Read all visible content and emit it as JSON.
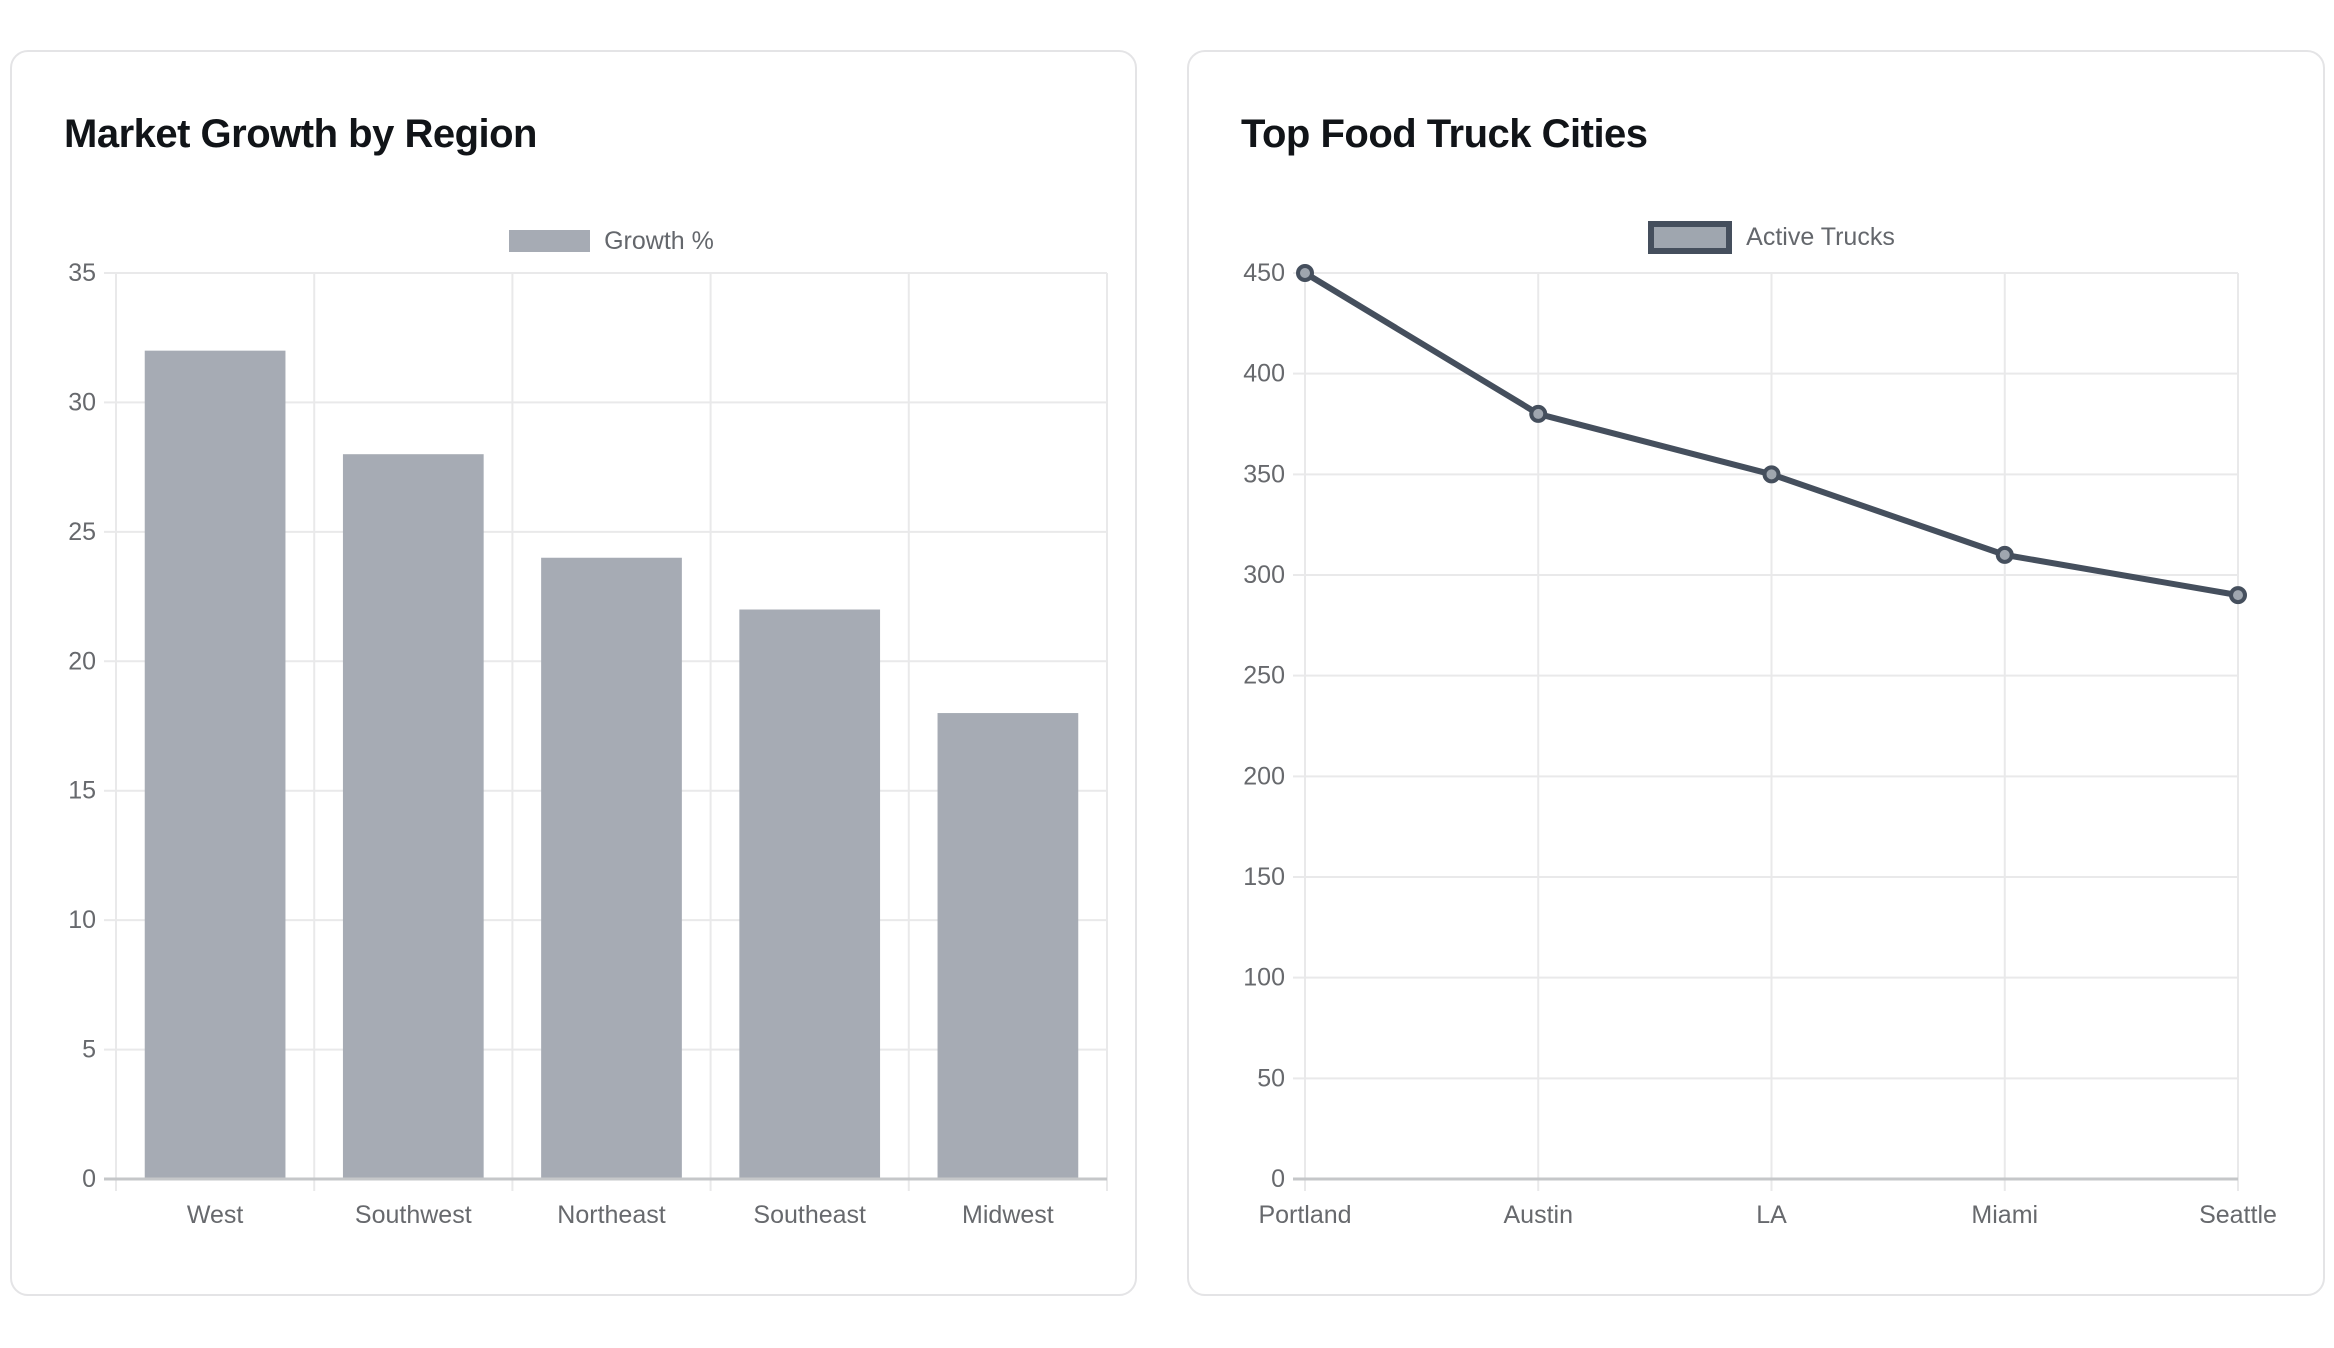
{
  "chart_data": [
    {
      "type": "bar",
      "title": "Market Growth by Region",
      "categories": [
        "West",
        "Southwest",
        "Northeast",
        "Southeast",
        "Midwest"
      ],
      "series": [
        {
          "name": "Growth %",
          "values": [
            32,
            28,
            24,
            22,
            18
          ]
        }
      ],
      "xlabel": "",
      "ylabel": "",
      "ylim": [
        0,
        35
      ],
      "ytick_step": 5,
      "grid": true,
      "legend_position": "top"
    },
    {
      "type": "line",
      "title": "Top Food Truck Cities",
      "categories": [
        "Portland",
        "Austin",
        "LA",
        "Miami",
        "Seattle"
      ],
      "series": [
        {
          "name": "Active Trucks",
          "values": [
            450,
            380,
            350,
            310,
            290
          ]
        }
      ],
      "xlabel": "",
      "ylabel": "",
      "ylim": [
        0,
        450
      ],
      "ytick_step": 50,
      "grid": true,
      "legend_position": "top"
    }
  ],
  "colors": {
    "bar_fill": "#a6abb4",
    "line_stroke": "#454f5d",
    "point_fill": "#9fa6af",
    "grid_line": "#e9e9ea",
    "axis_line": "#c5c7c9",
    "tick_label": "#67696d",
    "legend_label": "#64676c",
    "title_text": "#111418",
    "card_border": "#e4e4e6",
    "card_background": "#ffffff",
    "page_background": "#ffffff"
  }
}
